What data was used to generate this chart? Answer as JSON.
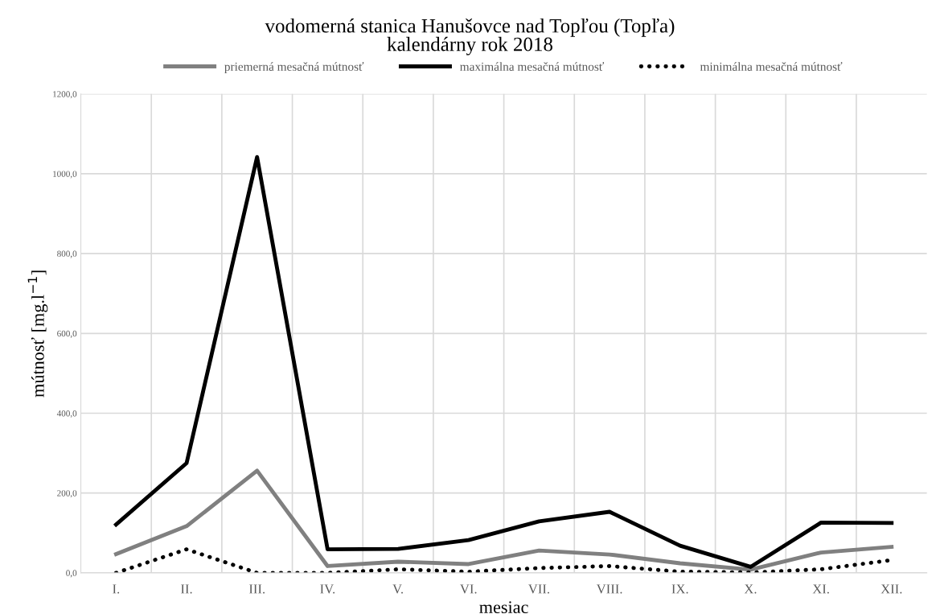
{
  "chart_data": {
    "type": "line",
    "title": "vodomerná stanica Hanušovce nad Topľou (Topľa)",
    "subtitle": "kalendárny rok 2018",
    "xlabel": "mesiac",
    "ylabel": "mútnosť [mg.l$^{−1}$]",
    "categories": [
      "I.",
      "II.",
      "III.",
      "IV.",
      "V.",
      "VI.",
      "VII.",
      "VIII.",
      "IX.",
      "X.",
      "XI.",
      "XII."
    ],
    "series": [
      {
        "name": "priemerná mesačná mútnosť",
        "color": "#808080",
        "line_style": "solid",
        "values": [
          47,
          117,
          256,
          17,
          28,
          22,
          56,
          46,
          24,
          8,
          51,
          65
        ]
      },
      {
        "name": "maximálna mesačná mútnosť",
        "color": "#000000",
        "line_style": "solid",
        "values": [
          121,
          275,
          1042,
          59,
          60,
          82,
          129,
          153,
          68,
          15,
          126,
          125
        ]
      },
      {
        "name": "minimálna mesačná mútnosť",
        "color": "#000000",
        "line_style": "dotted",
        "values": [
          0,
          59,
          0,
          0,
          9,
          3,
          12,
          17,
          3,
          1,
          9,
          32
        ]
      }
    ],
    "ylim": [
      0,
      1200
    ],
    "yticks": [
      {
        "value": 0,
        "label": "0,0"
      },
      {
        "value": 200,
        "label": "200,0"
      },
      {
        "value": 400,
        "label": "400,0"
      },
      {
        "value": 600,
        "label": "600,0"
      },
      {
        "value": 800,
        "label": "800,0"
      },
      {
        "value": 1000,
        "label": "1000,0"
      },
      {
        "value": 1200,
        "label": "1200,0"
      }
    ],
    "grid": true,
    "legend": "top"
  }
}
